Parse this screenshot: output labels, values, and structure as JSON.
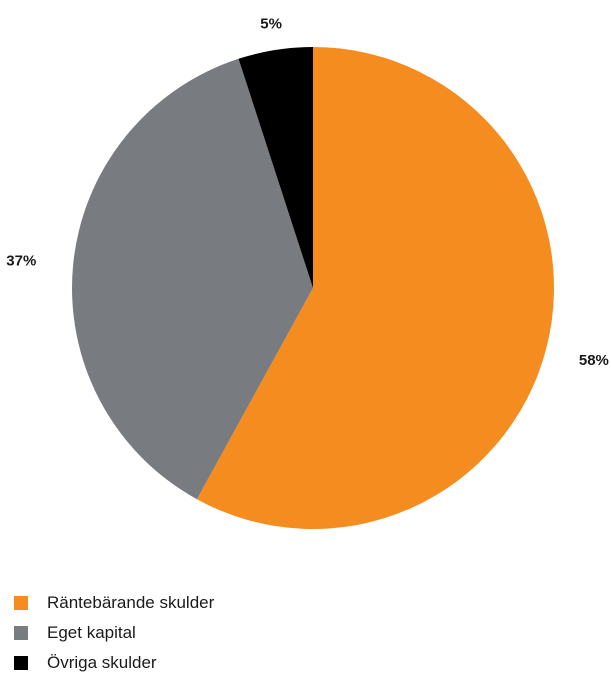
{
  "chart_data": {
    "type": "pie",
    "title": "",
    "categories": [
      "Räntebärande skulder",
      "Eget kapital",
      "Övriga skulder"
    ],
    "values": [
      58,
      37,
      5
    ],
    "value_labels": [
      "58%",
      "37%",
      "5%"
    ],
    "colors": [
      "#f58c1f",
      "#787b80",
      "#000000"
    ],
    "start": "12 o'clock",
    "direction": "clockwise",
    "legend_position": "bottom-left"
  },
  "legend": {
    "items": [
      {
        "label": "Räntebärande skulder",
        "color": "#f58c1f"
      },
      {
        "label": "Eget kapital",
        "color": "#787b80"
      },
      {
        "label": "Övriga skulder",
        "color": "#000000"
      }
    ]
  }
}
